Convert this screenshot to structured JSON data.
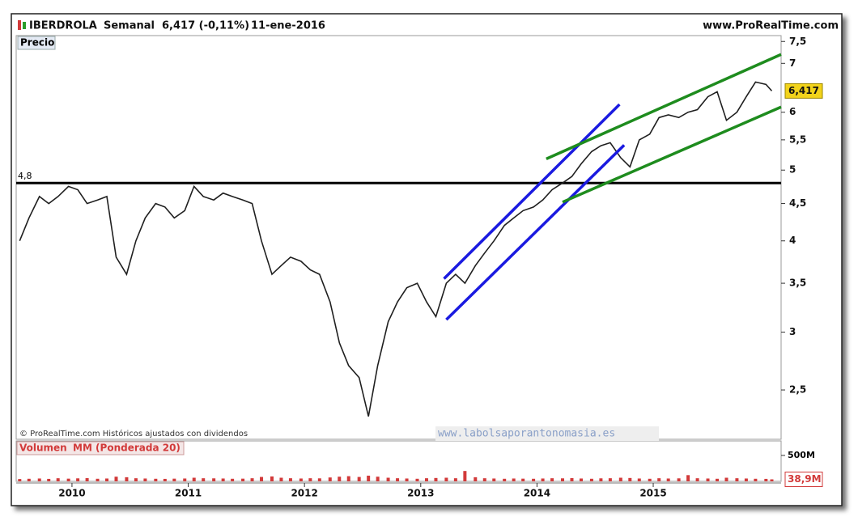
{
  "chart_data": {
    "type": "line",
    "header": {
      "symbol": "IBERDROLA",
      "period": "Semanal",
      "quote": "6,417 (-0,11%)",
      "date": "11-ene-2016",
      "site": "www.ProRealTime.com"
    },
    "panel_label": "Precio",
    "footnote": "© ProRealTime.com  Históricos ajustados con dividendos",
    "watermark": "www.labolsaporantonomasia.es",
    "yscale": "log",
    "xlim": [
      2009.52,
      2016.1
    ],
    "xticks": [
      2010,
      2011,
      2012,
      2013,
      2014,
      2015
    ],
    "ylim": [
      2.14,
      7.64
    ],
    "yticks": [
      {
        "value": 2.5,
        "label": "2,5"
      },
      3,
      {
        "value": 3.5,
        "label": "3,5"
      },
      4,
      {
        "value": 4.5,
        "label": "4,5"
      },
      5,
      {
        "value": 5.5,
        "label": "5,5"
      },
      6,
      7,
      {
        "value": 7.5,
        "label": "7,5"
      }
    ],
    "x": [
      2009.55,
      2009.63,
      2009.72,
      2009.8,
      2009.88,
      2009.97,
      2010.05,
      2010.13,
      2010.22,
      2010.3,
      2010.38,
      2010.47,
      2010.55,
      2010.63,
      2010.72,
      2010.8,
      2010.88,
      2010.97,
      2011.05,
      2011.13,
      2011.22,
      2011.3,
      2011.38,
      2011.47,
      2011.55,
      2011.63,
      2011.72,
      2011.8,
      2011.88,
      2011.97,
      2012.05,
      2012.13,
      2012.22,
      2012.3,
      2012.38,
      2012.47,
      2012.55,
      2012.63,
      2012.72,
      2012.8,
      2012.88,
      2012.97,
      2013.05,
      2013.13,
      2013.22,
      2013.3,
      2013.38,
      2013.47,
      2013.55,
      2013.63,
      2013.72,
      2013.8,
      2013.88,
      2013.97,
      2014.05,
      2014.13,
      2014.22,
      2014.3,
      2014.38,
      2014.47,
      2014.55,
      2014.63,
      2014.72,
      2014.8,
      2014.88,
      2014.97,
      2015.05,
      2015.13,
      2015.22,
      2015.3,
      2015.38,
      2015.47,
      2015.55,
      2015.63,
      2015.72,
      2015.8,
      2015.88,
      2015.97,
      2016.02
    ],
    "series": [
      {
        "color": "#1f1f1f",
        "values": [
          4.0,
          4.3,
          4.6,
          4.5,
          4.6,
          4.75,
          4.7,
          4.5,
          4.55,
          4.6,
          3.8,
          3.6,
          4.0,
          4.3,
          4.5,
          4.45,
          4.3,
          4.4,
          4.75,
          4.6,
          4.55,
          4.65,
          4.6,
          4.55,
          4.5,
          4.0,
          3.6,
          3.7,
          3.8,
          3.75,
          3.65,
          3.6,
          3.3,
          2.9,
          2.7,
          2.6,
          2.3,
          2.7,
          3.1,
          3.3,
          3.45,
          3.5,
          3.3,
          3.15,
          3.5,
          3.6,
          3.5,
          3.7,
          3.85,
          4.0,
          4.2,
          4.3,
          4.4,
          4.45,
          4.55,
          4.7,
          4.8,
          4.9,
          5.1,
          5.3,
          5.4,
          5.45,
          5.2,
          5.05,
          5.5,
          5.6,
          5.9,
          5.95,
          5.9,
          6.0,
          6.05,
          6.3,
          6.4,
          5.85,
          6.0,
          6.3,
          6.6,
          6.55,
          6.417
        ]
      }
    ],
    "price_marker": {
      "value": 6.417,
      "label": "6,417"
    },
    "hline": {
      "value": 4.8,
      "label": "4,8",
      "color": "#000000"
    },
    "trendlines": [
      {
        "color": "#1a1ae0",
        "x": [
          2013.2,
          2014.71
        ],
        "values": [
          3.55,
          6.15
        ]
      },
      {
        "color": "#1a1ae0",
        "x": [
          2013.22,
          2014.75
        ],
        "values": [
          3.12,
          5.41
        ]
      },
      {
        "color": "#1e8c1e",
        "x": [
          2014.08,
          2016.1
        ],
        "values": [
          5.18,
          7.2
        ]
      },
      {
        "color": "#1e8c1e",
        "x": [
          2014.22,
          2016.1
        ],
        "values": [
          4.52,
          6.1
        ]
      }
    ],
    "volume": {
      "title": "Volumen",
      "average_label": "MM (Ponderada 20)",
      "color": "#d23a3a",
      "ylim": [
        0,
        780
      ],
      "yticks": [
        {
          "value": 500,
          "label": "500M"
        }
      ],
      "values": [
        45,
        50,
        55,
        48,
        60,
        52,
        58,
        62,
        50,
        55,
        90,
        80,
        60,
        55,
        50,
        48,
        52,
        55,
        70,
        60,
        58,
        55,
        50,
        52,
        60,
        85,
        95,
        70,
        60,
        55,
        60,
        58,
        75,
        90,
        100,
        85,
        110,
        90,
        70,
        60,
        55,
        50,
        60,
        65,
        70,
        60,
        200,
        80,
        60,
        55,
        50,
        55,
        52,
        50,
        55,
        60,
        58,
        62,
        55,
        50,
        58,
        60,
        70,
        65,
        55,
        50,
        60,
        55,
        58,
        120,
        60,
        55,
        50,
        70,
        60,
        55,
        50,
        48,
        38.9
      ],
      "marker": {
        "value": 38.9,
        "label": "38,9M"
      }
    }
  }
}
